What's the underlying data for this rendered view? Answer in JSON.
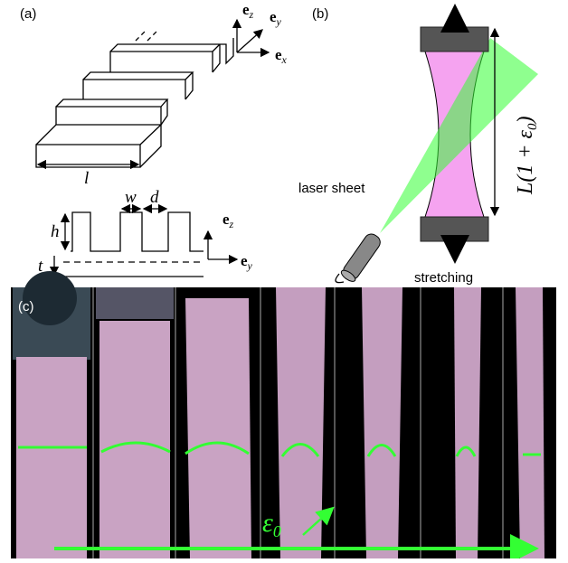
{
  "panel_a": {
    "label": "(a)",
    "axes_3d": [
      {
        "symbol": "e",
        "subscript": "z"
      },
      {
        "symbol": "e",
        "subscript": "y"
      },
      {
        "symbol": "e",
        "subscript": "x"
      }
    ],
    "length": "l",
    "width": "w",
    "gap": "d",
    "height": "h",
    "thickness": "t",
    "axes_2d": [
      {
        "symbol": "e",
        "subscript": "z"
      },
      {
        "symbol": "e",
        "subscript": "y"
      }
    ]
  },
  "panel_b": {
    "label": "(b)",
    "laser": "laser sheet",
    "stretch": "stretching",
    "strain_length": {
      "main": "L(1 + ε",
      "subscript": "0",
      "close": ")"
    }
  },
  "panel_c": {
    "label": "(c)",
    "strain": {
      "main": "ε",
      "subscript": "0"
    }
  }
}
